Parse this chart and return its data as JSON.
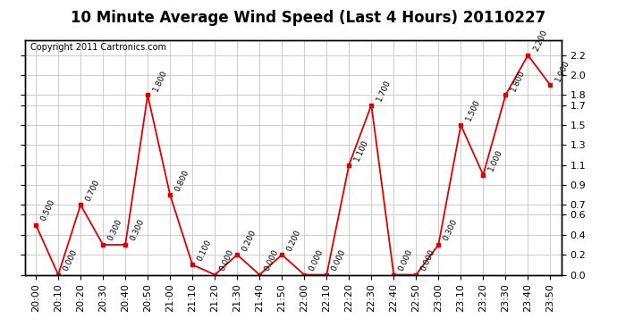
{
  "title": "10 Minute Average Wind Speed (Last 4 Hours) 20110227",
  "copyright": "Copyright 2011 Cartronics.com",
  "x_labels": [
    "20:00",
    "20:10",
    "20:20",
    "20:30",
    "20:40",
    "20:50",
    "21:00",
    "21:10",
    "21:20",
    "21:30",
    "21:40",
    "21:50",
    "22:00",
    "22:10",
    "22:20",
    "22:30",
    "22:40",
    "22:50",
    "23:00",
    "23:10",
    "23:20",
    "23:30",
    "23:40",
    "23:50"
  ],
  "y_values": [
    0.5,
    0.0,
    0.7,
    0.3,
    0.3,
    1.8,
    0.8,
    0.1,
    0.0,
    0.2,
    0.0,
    0.2,
    0.0,
    0.0,
    1.1,
    1.7,
    0.0,
    0.0,
    0.3,
    1.5,
    1.0,
    1.8,
    2.2,
    1.9
  ],
  "yticks_right": [
    0.0,
    0.2,
    0.4,
    0.6,
    0.7,
    0.9,
    1.1,
    1.3,
    1.5,
    1.7,
    1.8,
    2.0,
    2.2
  ],
  "ylim": [
    0.0,
    2.35
  ],
  "line_color": "#dd0000",
  "marker_color": "#dd0000",
  "bg_color": "#ffffff",
  "grid_color": "#cccccc",
  "title_fontsize": 12,
  "copyright_fontsize": 7,
  "tick_fontsize": 8,
  "annotation_fontsize": 6.5
}
